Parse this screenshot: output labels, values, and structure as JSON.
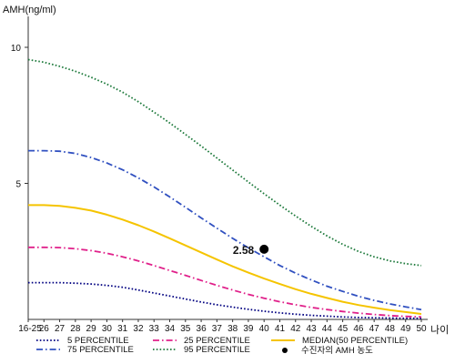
{
  "chart_data": {
    "type": "line",
    "ylabel": "AMH(ng/ml)",
    "xlabel": "나이",
    "ylim": [
      0,
      11
    ],
    "yticks": [
      5,
      10
    ],
    "categories": [
      "16-25",
      "26",
      "27",
      "28",
      "29",
      "30",
      "31",
      "32",
      "33",
      "34",
      "35",
      "36",
      "37",
      "38",
      "39",
      "40",
      "41",
      "42",
      "43",
      "44",
      "45",
      "46",
      "47",
      "48",
      "49",
      "50"
    ],
    "series": [
      {
        "name": "5 PERCENTILE",
        "color": "#000080",
        "style": "dotted",
        "values": [
          1.35,
          1.35,
          1.35,
          1.33,
          1.3,
          1.25,
          1.18,
          1.08,
          0.97,
          0.86,
          0.75,
          0.64,
          0.54,
          0.45,
          0.37,
          0.3,
          0.24,
          0.19,
          0.15,
          0.12,
          0.09,
          0.07,
          0.06,
          0.05,
          0.04,
          0.04
        ]
      },
      {
        "name": "25 PERCENTILE",
        "color": "#e0208a",
        "style": "dashdot",
        "values": [
          2.65,
          2.65,
          2.64,
          2.6,
          2.53,
          2.43,
          2.3,
          2.15,
          1.98,
          1.8,
          1.62,
          1.43,
          1.25,
          1.08,
          0.92,
          0.78,
          0.65,
          0.54,
          0.44,
          0.36,
          0.29,
          0.23,
          0.18,
          0.14,
          0.11,
          0.09
        ]
      },
      {
        "name": "MEDIAN(50 PERCENTILE)",
        "color": "#f5c400",
        "style": "solid",
        "values": [
          4.2,
          4.2,
          4.17,
          4.1,
          4.0,
          3.85,
          3.67,
          3.46,
          3.23,
          2.98,
          2.72,
          2.46,
          2.2,
          1.95,
          1.72,
          1.5,
          1.3,
          1.11,
          0.94,
          0.79,
          0.65,
          0.53,
          0.43,
          0.34,
          0.27,
          0.2
        ]
      },
      {
        "name": "75 PERCENTILE",
        "color": "#3050c0",
        "style": "dashdot",
        "values": [
          6.2,
          6.2,
          6.18,
          6.1,
          5.95,
          5.75,
          5.5,
          5.2,
          4.87,
          4.5,
          4.12,
          3.73,
          3.35,
          2.98,
          2.63,
          2.3,
          1.98,
          1.7,
          1.45,
          1.22,
          1.03,
          0.85,
          0.7,
          0.57,
          0.46,
          0.36
        ]
      },
      {
        "name": "95 PERCENTILE",
        "color": "#1e7a3c",
        "style": "dotted",
        "values": [
          9.55,
          9.45,
          9.3,
          9.12,
          8.9,
          8.65,
          8.35,
          8.0,
          7.62,
          7.22,
          6.8,
          6.37,
          5.93,
          5.49,
          5.05,
          4.62,
          4.2,
          3.8,
          3.42,
          3.07,
          2.76,
          2.5,
          2.3,
          2.15,
          2.05,
          1.98
        ]
      }
    ],
    "patient_point": {
      "name": "수진자의 AMH 농도",
      "x": "40",
      "y": 2.58,
      "label": "2.58"
    }
  }
}
